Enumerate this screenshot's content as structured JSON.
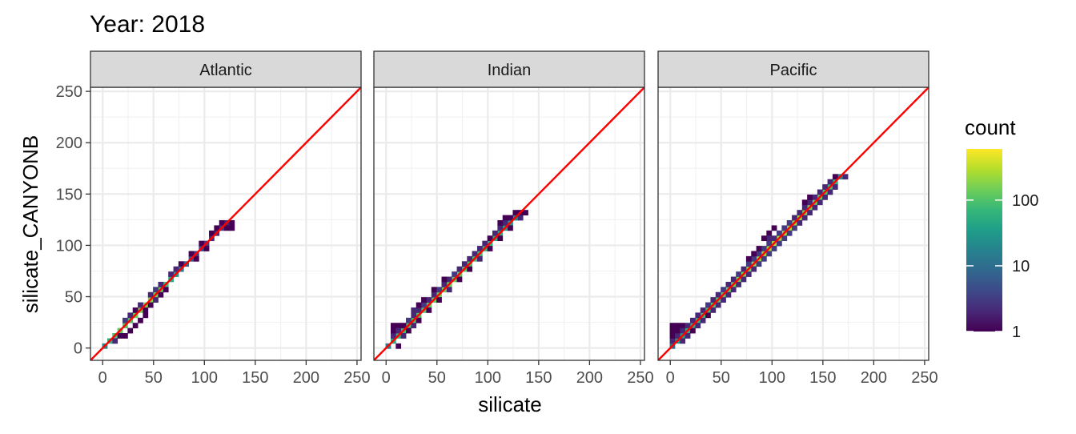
{
  "chart_data": {
    "type": "heatmap",
    "title": "Year: 2018",
    "xlabel": "silicate",
    "ylabel": "silicate_CANYONB",
    "xlim": [
      -12,
      254
    ],
    "ylim": [
      -12,
      254
    ],
    "xticks": [
      0,
      50,
      100,
      150,
      200,
      250
    ],
    "yticks": [
      0,
      50,
      100,
      150,
      200,
      250
    ],
    "reference_line": {
      "slope": 1,
      "intercept": 0,
      "color": "#ff0000"
    },
    "grid": true,
    "legend": {
      "title": "count",
      "scale": "log10",
      "breaks": [
        1,
        10,
        100
      ],
      "labels": [
        "1",
        "10",
        "100"
      ],
      "range": [
        1,
        600
      ],
      "placement": "right"
    },
    "colormap": [
      "#440154",
      "#482878",
      "#3e4989",
      "#31688e",
      "#26828e",
      "#1f9e89",
      "#35b779",
      "#6ece58",
      "#b5de2b",
      "#fde725"
    ],
    "panels": [
      {
        "facet": "Atlantic",
        "bins": [
          [
            2,
            2,
            20
          ],
          [
            7,
            7,
            60
          ],
          [
            12,
            12,
            90
          ],
          [
            17,
            17,
            120
          ],
          [
            22,
            22,
            110
          ],
          [
            27,
            27,
            100
          ],
          [
            32,
            32,
            130
          ],
          [
            37,
            37,
            150
          ],
          [
            42,
            42,
            170
          ],
          [
            47,
            47,
            180
          ],
          [
            52,
            52,
            160
          ],
          [
            57,
            57,
            120
          ],
          [
            62,
            62,
            80
          ],
          [
            67,
            67,
            50
          ],
          [
            72,
            72,
            30
          ],
          [
            77,
            77,
            15
          ],
          [
            82,
            82,
            8
          ],
          [
            87,
            87,
            5
          ],
          [
            92,
            92,
            3
          ],
          [
            97,
            97,
            4
          ],
          [
            102,
            102,
            3
          ],
          [
            107,
            107,
            2
          ],
          [
            112,
            112,
            2
          ],
          [
            117,
            117,
            3
          ],
          [
            122,
            122,
            2
          ],
          [
            127,
            122,
            1
          ],
          [
            12,
            7,
            2
          ],
          [
            17,
            12,
            1
          ],
          [
            22,
            27,
            3
          ],
          [
            27,
            32,
            2
          ],
          [
            32,
            37,
            1
          ],
          [
            37,
            42,
            2
          ],
          [
            42,
            37,
            1
          ],
          [
            37,
            27,
            1
          ],
          [
            42,
            32,
            1
          ],
          [
            47,
            52,
            2
          ],
          [
            52,
            57,
            3
          ],
          [
            57,
            62,
            2
          ],
          [
            62,
            57,
            1
          ],
          [
            67,
            72,
            2
          ],
          [
            72,
            77,
            2
          ],
          [
            77,
            82,
            1
          ],
          [
            87,
            92,
            1
          ],
          [
            92,
            87,
            1
          ],
          [
            97,
            102,
            1
          ],
          [
            107,
            112,
            1
          ],
          [
            112,
            117,
            1
          ],
          [
            102,
            97,
            1
          ],
          [
            117,
            122,
            1
          ],
          [
            122,
            117,
            1
          ],
          [
            127,
            117,
            1
          ],
          [
            32,
            22,
            1
          ],
          [
            27,
            17,
            1
          ],
          [
            22,
            12,
            1
          ],
          [
            52,
            47,
            2
          ],
          [
            57,
            52,
            1
          ],
          [
            47,
            42,
            1
          ]
        ]
      },
      {
        "facet": "Indian",
        "bins": [
          [
            2,
            2,
            15
          ],
          [
            7,
            7,
            50
          ],
          [
            12,
            12,
            70
          ],
          [
            17,
            17,
            80
          ],
          [
            22,
            22,
            90
          ],
          [
            27,
            27,
            95
          ],
          [
            32,
            32,
            100
          ],
          [
            37,
            37,
            110
          ],
          [
            42,
            42,
            120
          ],
          [
            47,
            47,
            130
          ],
          [
            52,
            52,
            140
          ],
          [
            57,
            57,
            150
          ],
          [
            62,
            62,
            140
          ],
          [
            67,
            67,
            130
          ],
          [
            72,
            72,
            120
          ],
          [
            77,
            77,
            110
          ],
          [
            82,
            82,
            100
          ],
          [
            87,
            87,
            90
          ],
          [
            92,
            92,
            80
          ],
          [
            97,
            97,
            70
          ],
          [
            102,
            102,
            60
          ],
          [
            107,
            107,
            55
          ],
          [
            112,
            112,
            50
          ],
          [
            117,
            117,
            40
          ],
          [
            122,
            122,
            30
          ],
          [
            127,
            127,
            20
          ],
          [
            132,
            127,
            2
          ],
          [
            137,
            132,
            1
          ],
          [
            7,
            12,
            2
          ],
          [
            7,
            17,
            1
          ],
          [
            7,
            22,
            1
          ],
          [
            12,
            22,
            1
          ],
          [
            12,
            17,
            2
          ],
          [
            17,
            22,
            1
          ],
          [
            22,
            27,
            3
          ],
          [
            27,
            32,
            2
          ],
          [
            32,
            37,
            2
          ],
          [
            37,
            42,
            3
          ],
          [
            42,
            47,
            2
          ],
          [
            47,
            52,
            2
          ],
          [
            52,
            57,
            3
          ],
          [
            57,
            62,
            2
          ],
          [
            62,
            67,
            2
          ],
          [
            67,
            72,
            3
          ],
          [
            72,
            77,
            2
          ],
          [
            77,
            82,
            2
          ],
          [
            82,
            87,
            2
          ],
          [
            87,
            92,
            2
          ],
          [
            92,
            97,
            2
          ],
          [
            97,
            102,
            2
          ],
          [
            102,
            107,
            1
          ],
          [
            107,
            112,
            2
          ],
          [
            112,
            117,
            2
          ],
          [
            117,
            122,
            2
          ],
          [
            122,
            127,
            1
          ],
          [
            127,
            132,
            1
          ],
          [
            132,
            132,
            1
          ],
          [
            12,
            2,
            1
          ],
          [
            17,
            12,
            2
          ],
          [
            22,
            17,
            1
          ],
          [
            27,
            22,
            2
          ],
          [
            32,
            27,
            1
          ],
          [
            42,
            37,
            1
          ],
          [
            52,
            47,
            1
          ],
          [
            62,
            57,
            2
          ],
          [
            72,
            67,
            1
          ],
          [
            82,
            77,
            1
          ],
          [
            92,
            87,
            2
          ],
          [
            102,
            97,
            1
          ],
          [
            112,
            107,
            1
          ],
          [
            122,
            117,
            1
          ],
          [
            27,
            37,
            2
          ],
          [
            32,
            42,
            1
          ],
          [
            37,
            47,
            1
          ],
          [
            47,
            57,
            1
          ],
          [
            57,
            67,
            1
          ],
          [
            112,
            122,
            1
          ],
          [
            117,
            127,
            1
          ]
        ]
      },
      {
        "facet": "Pacific",
        "bins": [
          [
            2,
            2,
            10
          ],
          [
            7,
            7,
            30
          ],
          [
            12,
            12,
            40
          ],
          [
            17,
            17,
            50
          ],
          [
            22,
            22,
            60
          ],
          [
            27,
            27,
            70
          ],
          [
            32,
            32,
            80
          ],
          [
            37,
            37,
            90
          ],
          [
            42,
            42,
            100
          ],
          [
            47,
            47,
            110
          ],
          [
            52,
            52,
            120
          ],
          [
            57,
            57,
            130
          ],
          [
            62,
            62,
            140
          ],
          [
            67,
            67,
            150
          ],
          [
            72,
            72,
            160
          ],
          [
            77,
            77,
            170
          ],
          [
            82,
            82,
            180
          ],
          [
            87,
            87,
            200
          ],
          [
            92,
            92,
            220
          ],
          [
            97,
            97,
            250
          ],
          [
            102,
            102,
            260
          ],
          [
            107,
            107,
            250
          ],
          [
            112,
            112,
            240
          ],
          [
            117,
            117,
            230
          ],
          [
            122,
            122,
            220
          ],
          [
            127,
            127,
            200
          ],
          [
            132,
            132,
            180
          ],
          [
            137,
            137,
            160
          ],
          [
            142,
            142,
            140
          ],
          [
            147,
            147,
            120
          ],
          [
            152,
            152,
            100
          ],
          [
            157,
            157,
            80
          ],
          [
            162,
            162,
            60
          ],
          [
            167,
            167,
            20
          ],
          [
            172,
            167,
            2
          ],
          [
            2,
            7,
            2
          ],
          [
            2,
            12,
            1
          ],
          [
            2,
            17,
            1
          ],
          [
            2,
            22,
            1
          ],
          [
            7,
            12,
            2
          ],
          [
            7,
            17,
            1
          ],
          [
            7,
            22,
            1
          ],
          [
            12,
            22,
            1
          ],
          [
            12,
            17,
            2
          ],
          [
            17,
            22,
            2
          ],
          [
            22,
            27,
            2
          ],
          [
            27,
            32,
            2
          ],
          [
            32,
            37,
            2
          ],
          [
            37,
            42,
            3
          ],
          [
            42,
            47,
            2
          ],
          [
            47,
            52,
            2
          ],
          [
            52,
            57,
            3
          ],
          [
            57,
            62,
            2
          ],
          [
            62,
            67,
            2
          ],
          [
            67,
            72,
            3
          ],
          [
            72,
            77,
            2
          ],
          [
            77,
            82,
            3
          ],
          [
            82,
            87,
            3
          ],
          [
            87,
            92,
            3
          ],
          [
            92,
            97,
            3
          ],
          [
            97,
            102,
            3
          ],
          [
            102,
            107,
            2
          ],
          [
            107,
            112,
            3
          ],
          [
            112,
            117,
            3
          ],
          [
            117,
            122,
            3
          ],
          [
            122,
            127,
            2
          ],
          [
            127,
            132,
            2
          ],
          [
            132,
            137,
            2
          ],
          [
            137,
            142,
            2
          ],
          [
            142,
            147,
            2
          ],
          [
            147,
            152,
            2
          ],
          [
            152,
            157,
            2
          ],
          [
            157,
            162,
            2
          ],
          [
            162,
            167,
            1
          ],
          [
            12,
            7,
            2
          ],
          [
            17,
            12,
            2
          ],
          [
            22,
            17,
            1
          ],
          [
            27,
            22,
            2
          ],
          [
            32,
            27,
            2
          ],
          [
            37,
            32,
            1
          ],
          [
            42,
            37,
            2
          ],
          [
            47,
            42,
            2
          ],
          [
            52,
            47,
            2
          ],
          [
            57,
            52,
            2
          ],
          [
            62,
            57,
            2
          ],
          [
            67,
            62,
            2
          ],
          [
            72,
            67,
            2
          ],
          [
            77,
            72,
            2
          ],
          [
            82,
            77,
            2
          ],
          [
            87,
            82,
            3
          ],
          [
            92,
            87,
            3
          ],
          [
            97,
            92,
            3
          ],
          [
            102,
            97,
            3
          ],
          [
            107,
            102,
            3
          ],
          [
            112,
            107,
            3
          ],
          [
            117,
            112,
            3
          ],
          [
            122,
            117,
            3
          ],
          [
            127,
            122,
            2
          ],
          [
            132,
            127,
            2
          ],
          [
            137,
            132,
            2
          ],
          [
            142,
            137,
            2
          ],
          [
            147,
            142,
            2
          ],
          [
            152,
            147,
            2
          ],
          [
            157,
            152,
            2
          ],
          [
            162,
            157,
            2
          ],
          [
            97,
            112,
            1
          ],
          [
            102,
            117,
            1
          ],
          [
            97,
            107,
            2
          ],
          [
            92,
            107,
            1
          ],
          [
            132,
            142,
            1
          ],
          [
            137,
            147,
            1
          ],
          [
            87,
            97,
            1
          ],
          [
            82,
            92,
            1
          ],
          [
            77,
            87,
            1
          ]
        ]
      }
    ]
  }
}
